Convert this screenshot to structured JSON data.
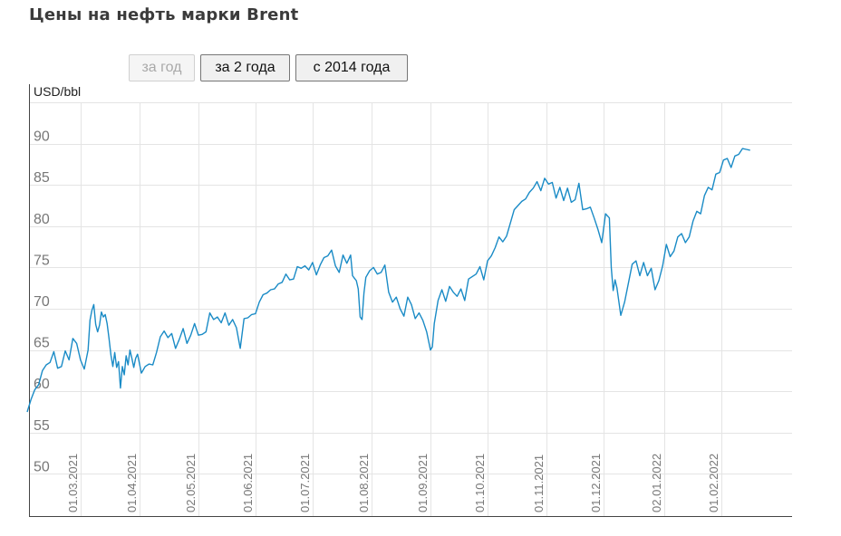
{
  "header": {
    "title": "Цены на нефть марки Brent"
  },
  "range_buttons": [
    {
      "label": "за год",
      "disabled": true
    },
    {
      "label": "за 2 года",
      "disabled": false
    },
    {
      "label": "с 2014 года",
      "disabled": false
    }
  ],
  "colors": {
    "line": "#1a8bc6",
    "grid": "#e4e4e4",
    "axis": "#444444"
  },
  "chart_data": {
    "type": "line",
    "title": "Цены на нефть марки Brent",
    "ylabel": "USD/bbl",
    "xlabel": "",
    "ylim": [
      45,
      95
    ],
    "yticks": [
      50,
      55,
      60,
      65,
      70,
      75,
      80,
      85,
      90
    ],
    "grid": true,
    "x_range_days": [
      -28,
      375
    ],
    "xticks": [
      {
        "label": "01.03.2021",
        "day": 0
      },
      {
        "label": "01.04.2021",
        "day": 31
      },
      {
        "label": "02.05.2021",
        "day": 62
      },
      {
        "label": "01.06.2021",
        "day": 92
      },
      {
        "label": "01.07.2021",
        "day": 122
      },
      {
        "label": "01.08.2021",
        "day": 153
      },
      {
        "label": "01.09.2021",
        "day": 184
      },
      {
        "label": "01.10.2021",
        "day": 214
      },
      {
        "label": "01.11.2021",
        "day": 245
      },
      {
        "label": "01.12.2021",
        "day": 275
      },
      {
        "label": "02.01.2022",
        "day": 307
      },
      {
        "label": "01.02.2022",
        "day": 337
      }
    ],
    "series": [
      {
        "name": "Brent",
        "points": [
          [
            -28,
            57.5
          ],
          [
            -26,
            59.0
          ],
          [
            -24,
            60.2
          ],
          [
            -22,
            60.8
          ],
          [
            -20,
            62.5
          ],
          [
            -18,
            63.2
          ],
          [
            -16,
            63.5
          ],
          [
            -14,
            64.8
          ],
          [
            -12,
            62.8
          ],
          [
            -10,
            63.0
          ],
          [
            -8,
            64.9
          ],
          [
            -6,
            63.8
          ],
          [
            -4,
            66.4
          ],
          [
            -2,
            65.8
          ],
          [
            0,
            63.8
          ],
          [
            2,
            62.7
          ],
          [
            4,
            65.0
          ],
          [
            5,
            68.6
          ],
          [
            6,
            69.8
          ],
          [
            7,
            70.5
          ],
          [
            8,
            68.1
          ],
          [
            9,
            67.2
          ],
          [
            10,
            68.0
          ],
          [
            11,
            69.6
          ],
          [
            12,
            69.0
          ],
          [
            13,
            69.3
          ],
          [
            14,
            68.2
          ],
          [
            15,
            66.4
          ],
          [
            16,
            64.4
          ],
          [
            17,
            63.0
          ],
          [
            18,
            64.7
          ],
          [
            19,
            62.9
          ],
          [
            20,
            63.6
          ],
          [
            21,
            60.4
          ],
          [
            22,
            63.0
          ],
          [
            23,
            62.0
          ],
          [
            24,
            64.3
          ],
          [
            25,
            63.2
          ],
          [
            26,
            65.0
          ],
          [
            27,
            64.0
          ],
          [
            28,
            62.9
          ],
          [
            29,
            64.0
          ],
          [
            30,
            64.5
          ],
          [
            32,
            62.2
          ],
          [
            34,
            63.0
          ],
          [
            36,
            63.3
          ],
          [
            38,
            63.2
          ],
          [
            40,
            64.7
          ],
          [
            42,
            66.6
          ],
          [
            44,
            67.3
          ],
          [
            46,
            66.5
          ],
          [
            48,
            67.0
          ],
          [
            50,
            65.2
          ],
          [
            52,
            66.3
          ],
          [
            54,
            67.6
          ],
          [
            56,
            65.8
          ],
          [
            58,
            66.8
          ],
          [
            60,
            68.2
          ],
          [
            62,
            66.8
          ],
          [
            64,
            66.9
          ],
          [
            66,
            67.2
          ],
          [
            68,
            69.5
          ],
          [
            70,
            68.7
          ],
          [
            72,
            69.0
          ],
          [
            74,
            68.3
          ],
          [
            76,
            69.5
          ],
          [
            78,
            68.0
          ],
          [
            80,
            68.7
          ],
          [
            82,
            67.7
          ],
          [
            84,
            65.2
          ],
          [
            86,
            68.8
          ],
          [
            88,
            68.9
          ],
          [
            90,
            69.3
          ],
          [
            92,
            69.4
          ],
          [
            94,
            70.8
          ],
          [
            96,
            71.7
          ],
          [
            98,
            71.9
          ],
          [
            100,
            72.3
          ],
          [
            102,
            72.4
          ],
          [
            104,
            73.0
          ],
          [
            106,
            73.2
          ],
          [
            108,
            74.2
          ],
          [
            110,
            73.5
          ],
          [
            112,
            73.6
          ],
          [
            114,
            75.1
          ],
          [
            116,
            74.9
          ],
          [
            118,
            75.2
          ],
          [
            120,
            74.7
          ],
          [
            122,
            75.6
          ],
          [
            124,
            74.1
          ],
          [
            126,
            75.3
          ],
          [
            128,
            76.2
          ],
          [
            130,
            76.4
          ],
          [
            132,
            77.1
          ],
          [
            134,
            75.2
          ],
          [
            136,
            74.4
          ],
          [
            138,
            76.5
          ],
          [
            140,
            75.5
          ],
          [
            142,
            76.5
          ],
          [
            143,
            74.0
          ],
          [
            144,
            73.7
          ],
          [
            145,
            73.4
          ],
          [
            146,
            72.4
          ],
          [
            147,
            69.0
          ],
          [
            148,
            68.7
          ],
          [
            149,
            71.9
          ],
          [
            150,
            73.8
          ],
          [
            152,
            74.6
          ],
          [
            154,
            75.0
          ],
          [
            156,
            74.2
          ],
          [
            158,
            74.4
          ],
          [
            160,
            75.3
          ],
          [
            162,
            72.0
          ],
          [
            164,
            70.8
          ],
          [
            166,
            71.4
          ],
          [
            168,
            70.0
          ],
          [
            170,
            69.1
          ],
          [
            172,
            71.4
          ],
          [
            174,
            70.5
          ],
          [
            176,
            68.8
          ],
          [
            178,
            69.5
          ],
          [
            180,
            68.6
          ],
          [
            182,
            67.2
          ],
          [
            184,
            65.0
          ],
          [
            185,
            65.4
          ],
          [
            186,
            68.2
          ],
          [
            188,
            71.0
          ],
          [
            190,
            72.3
          ],
          [
            192,
            70.9
          ],
          [
            194,
            72.7
          ],
          [
            196,
            72.0
          ],
          [
            198,
            71.5
          ],
          [
            200,
            72.4
          ],
          [
            202,
            71.0
          ],
          [
            204,
            73.6
          ],
          [
            206,
            73.9
          ],
          [
            208,
            74.2
          ],
          [
            210,
            75.1
          ],
          [
            212,
            73.5
          ],
          [
            214,
            75.8
          ],
          [
            216,
            76.4
          ],
          [
            218,
            77.4
          ],
          [
            220,
            78.7
          ],
          [
            222,
            78.1
          ],
          [
            224,
            78.8
          ],
          [
            226,
            80.4
          ],
          [
            228,
            82.0
          ],
          [
            230,
            82.5
          ],
          [
            232,
            83.0
          ],
          [
            234,
            83.3
          ],
          [
            236,
            84.1
          ],
          [
            238,
            84.6
          ],
          [
            240,
            85.4
          ],
          [
            242,
            84.3
          ],
          [
            244,
            85.8
          ],
          [
            246,
            85.1
          ],
          [
            248,
            85.3
          ],
          [
            250,
            83.4
          ],
          [
            252,
            84.7
          ],
          [
            254,
            83.1
          ],
          [
            256,
            84.6
          ],
          [
            258,
            82.9
          ],
          [
            260,
            83.2
          ],
          [
            262,
            85.2
          ],
          [
            264,
            82.0
          ],
          [
            266,
            82.1
          ],
          [
            268,
            82.3
          ],
          [
            270,
            81.0
          ],
          [
            272,
            79.6
          ],
          [
            274,
            78.0
          ],
          [
            276,
            81.5
          ],
          [
            278,
            81.0
          ],
          [
            279,
            75.0
          ],
          [
            280,
            72.2
          ],
          [
            281,
            73.5
          ],
          [
            282,
            72.5
          ],
          [
            284,
            69.2
          ],
          [
            286,
            70.8
          ],
          [
            288,
            73.1
          ],
          [
            290,
            75.4
          ],
          [
            292,
            75.8
          ],
          [
            294,
            74.0
          ],
          [
            296,
            75.6
          ],
          [
            298,
            74.0
          ],
          [
            300,
            74.9
          ],
          [
            302,
            72.3
          ],
          [
            304,
            73.4
          ],
          [
            306,
            75.2
          ],
          [
            308,
            77.8
          ],
          [
            310,
            76.3
          ],
          [
            312,
            77.0
          ],
          [
            314,
            78.7
          ],
          [
            316,
            79.1
          ],
          [
            318,
            78.0
          ],
          [
            320,
            78.7
          ],
          [
            322,
            80.6
          ],
          [
            324,
            81.8
          ],
          [
            326,
            81.5
          ],
          [
            328,
            83.7
          ],
          [
            330,
            84.7
          ],
          [
            332,
            84.4
          ],
          [
            334,
            86.3
          ],
          [
            336,
            86.5
          ],
          [
            338,
            88.0
          ],
          [
            340,
            88.2
          ],
          [
            342,
            87.1
          ],
          [
            344,
            88.5
          ],
          [
            346,
            88.7
          ],
          [
            348,
            89.4
          ],
          [
            350,
            89.3
          ],
          [
            352,
            89.2
          ]
        ]
      }
    ]
  }
}
